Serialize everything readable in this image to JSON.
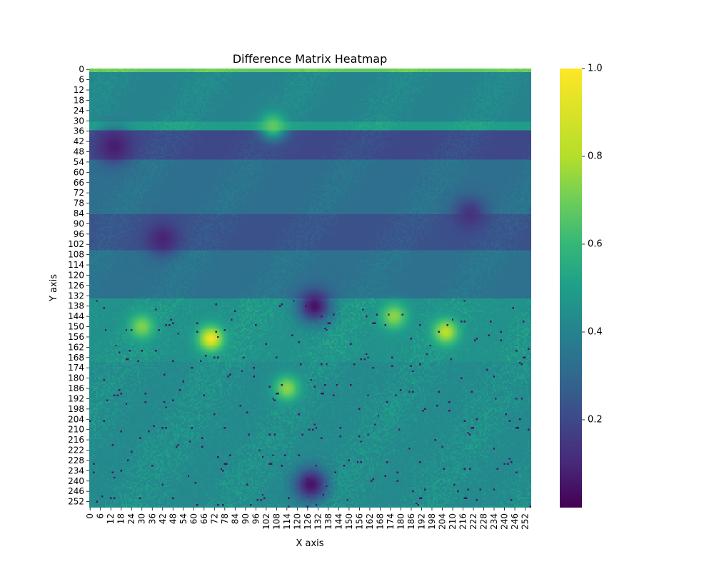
{
  "chart_data": {
    "type": "heatmap",
    "title": "Difference Matrix Heatmap",
    "xlabel": "X axis",
    "ylabel": "Y axis",
    "grid": false,
    "matrix_size": [
      256,
      256
    ],
    "x_ticks": [
      "0",
      "6",
      "12",
      "18",
      "24",
      "30",
      "36",
      "42",
      "48",
      "54",
      "60",
      "66",
      "72",
      "78",
      "84",
      "90",
      "96",
      "102",
      "108",
      "114",
      "120",
      "126",
      "132",
      "138",
      "144",
      "150",
      "156",
      "162",
      "168",
      "174",
      "180",
      "186",
      "192",
      "198",
      "204",
      "210",
      "216",
      "222",
      "228",
      "234",
      "240",
      "246",
      "252"
    ],
    "y_ticks": [
      "0",
      "6",
      "12",
      "18",
      "24",
      "30",
      "36",
      "42",
      "48",
      "54",
      "60",
      "66",
      "72",
      "78",
      "84",
      "90",
      "96",
      "102",
      "108",
      "114",
      "120",
      "126",
      "132",
      "138",
      "144",
      "150",
      "156",
      "162",
      "168",
      "174",
      "180",
      "186",
      "192",
      "198",
      "204",
      "210",
      "216",
      "222",
      "228",
      "234",
      "240",
      "246",
      "252"
    ],
    "colorbar": {
      "colormap": "viridis",
      "range": [
        0.0,
        1.0
      ],
      "ticks": [
        "0.2",
        "0.4",
        "0.6",
        "0.8",
        "1.0"
      ]
    },
    "value_bands": [
      {
        "rows": [
          0,
          1
        ],
        "mean": 0.75
      },
      {
        "rows": [
          2,
          30
        ],
        "mean": 0.45
      },
      {
        "rows": [
          31,
          35
        ],
        "mean": 0.55
      },
      {
        "rows": [
          36,
          52
        ],
        "mean": 0.22
      },
      {
        "rows": [
          53,
          84
        ],
        "mean": 0.36
      },
      {
        "rows": [
          85,
          105
        ],
        "mean": 0.25
      },
      {
        "rows": [
          106,
          133
        ],
        "mean": 0.37
      },
      {
        "rows": [
          134,
          170
        ],
        "mean": 0.5
      },
      {
        "rows": [
          171,
          255
        ],
        "mean": 0.47
      }
    ],
    "hot_spots": [
      {
        "x": 70,
        "y": 157,
        "value": 0.98
      },
      {
        "x": 206,
        "y": 153,
        "value": 0.9
      },
      {
        "x": 176,
        "y": 144,
        "value": 0.82
      },
      {
        "x": 106,
        "y": 33,
        "value": 0.75
      },
      {
        "x": 114,
        "y": 186,
        "value": 0.82
      },
      {
        "x": 30,
        "y": 150,
        "value": 0.8
      }
    ],
    "cold_spots": [
      {
        "x": 14,
        "y": 45,
        "value": 0.08
      },
      {
        "x": 42,
        "y": 99,
        "value": 0.1
      },
      {
        "x": 130,
        "y": 138,
        "value": 0.05
      },
      {
        "x": 128,
        "y": 242,
        "value": 0.05
      },
      {
        "x": 220,
        "y": 84,
        "value": 0.15
      }
    ]
  }
}
